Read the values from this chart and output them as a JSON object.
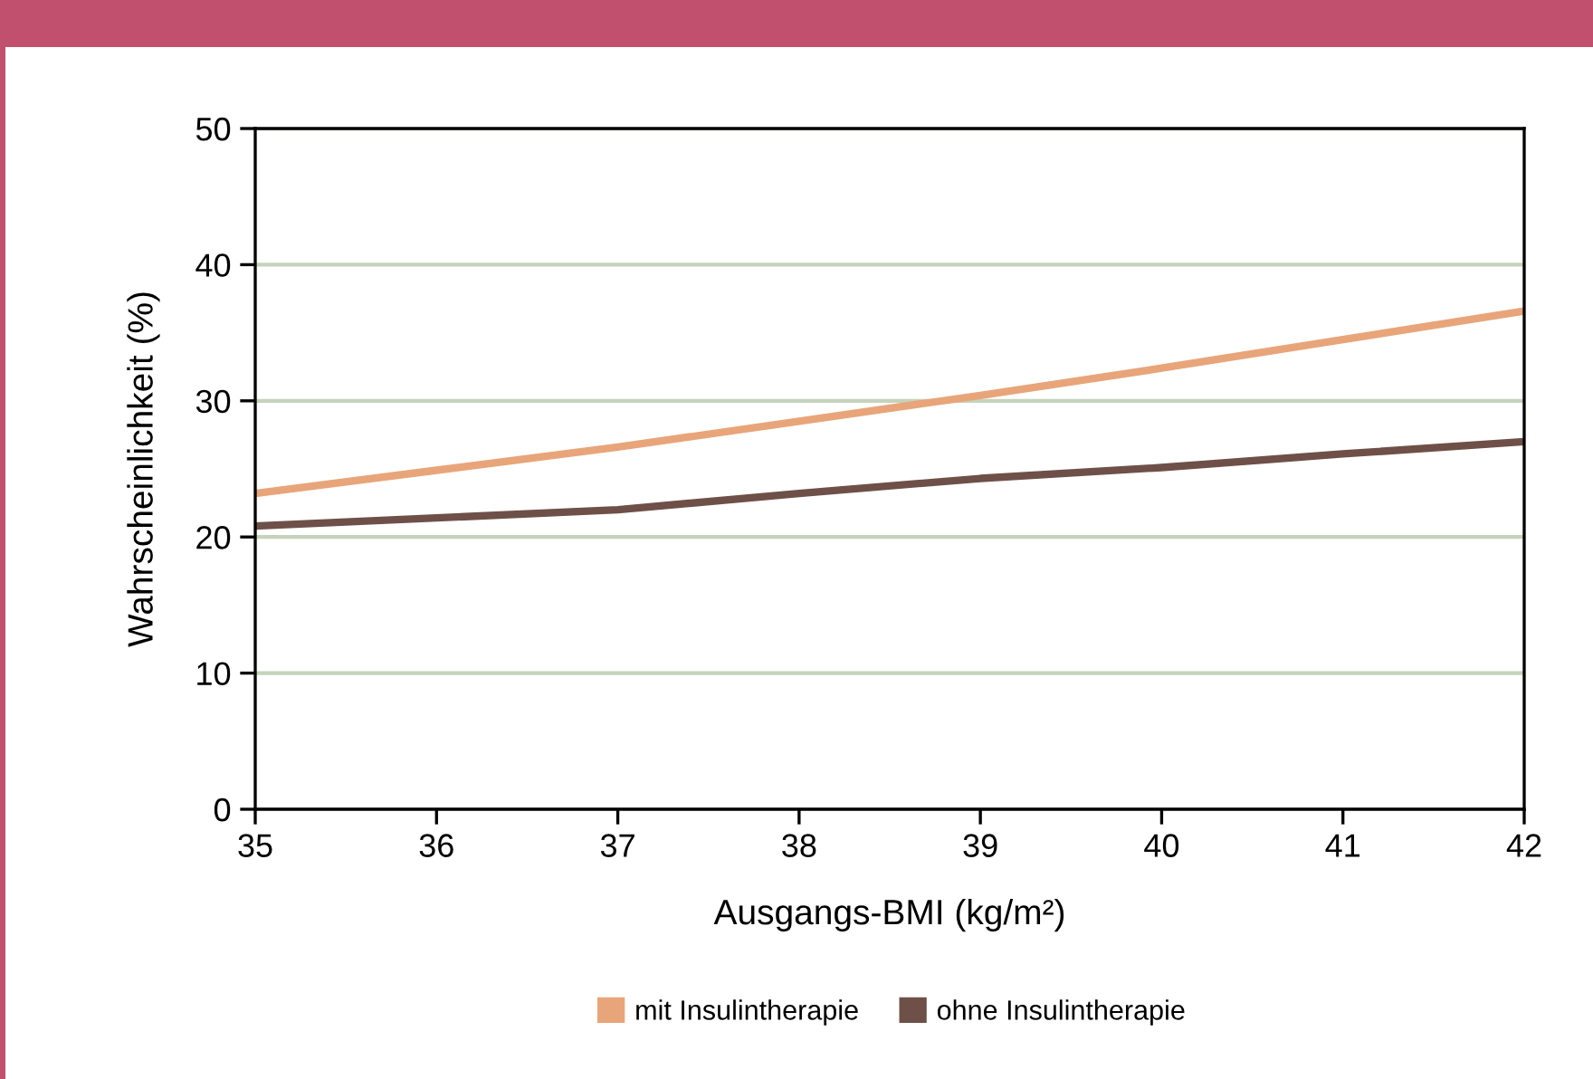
{
  "chart_data": {
    "type": "line",
    "xlabel": "Ausgangs-BMI (kg/m²)",
    "ylabel": "Wahrscheinlichkeit (%)",
    "x": [
      35,
      36,
      37,
      38,
      39,
      40,
      41,
      42
    ],
    "series": [
      {
        "name": "mit Insulintherapie",
        "color": "#e8a57a",
        "values": [
          23.2,
          24.9,
          26.6,
          28.5,
          30.4,
          32.4,
          34.5,
          36.6
        ]
      },
      {
        "name": "ohne Insulintherapie",
        "color": "#6e5049",
        "values": [
          20.8,
          21.4,
          22.0,
          23.2,
          24.3,
          25.1,
          26.1,
          27.0
        ]
      }
    ],
    "xlim": [
      35,
      42
    ],
    "xticks": [
      35,
      36,
      37,
      38,
      39,
      40,
      41,
      42
    ],
    "ylim": [
      0,
      50
    ],
    "yticks": [
      0,
      10,
      20,
      30,
      40,
      50
    ],
    "grid": "y",
    "legend": "bottom",
    "marker": "none",
    "line_style": "solid"
  }
}
